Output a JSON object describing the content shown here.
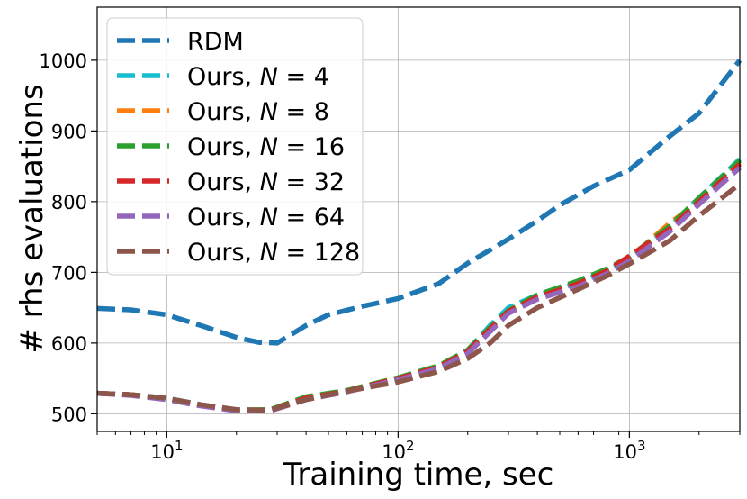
{
  "chart_data": {
    "type": "line",
    "title": "",
    "xlabel": "Training time, sec",
    "ylabel": "# rhs evaluations",
    "xscale": "log",
    "xlim": [
      5,
      3000
    ],
    "ylim": [
      475,
      1075
    ],
    "grid": true,
    "legend_position": "top-left",
    "x_ticks": [
      {
        "base": "10",
        "exp": "1",
        "value": 10
      },
      {
        "base": "10",
        "exp": "2",
        "value": 100
      },
      {
        "base": "10",
        "exp": "3",
        "value": 1000
      }
    ],
    "y_ticks": [
      {
        "label": "500",
        "value": 500
      },
      {
        "label": "600",
        "value": 600
      },
      {
        "label": "700",
        "value": 700
      },
      {
        "label": "800",
        "value": 800
      },
      {
        "label": "900",
        "value": 900
      },
      {
        "label": "1000",
        "value": 1000
      }
    ],
    "series": [
      {
        "name": "RDM",
        "prefix": "RDM",
        "n_label": "",
        "n_value": "",
        "color": "#1f77b4",
        "x": [
          5,
          7,
          10,
          14,
          20,
          25,
          30,
          40,
          50,
          70,
          100,
          150,
          200,
          300,
          400,
          500,
          700,
          1000,
          1500,
          2000,
          3000
        ],
        "y": [
          649,
          647,
          640,
          625,
          608,
          601,
          600,
          625,
          640,
          652,
          663,
          684,
          713,
          747,
          773,
          795,
          822,
          845,
          893,
          925,
          1000
        ]
      },
      {
        "name": "Ours, N = 4",
        "prefix": "Ours, ",
        "n_label": "N",
        "n_value": "4",
        "color": "#17becf",
        "x": [
          5,
          7,
          10,
          14,
          20,
          28,
          40,
          60,
          100,
          150,
          200,
          250,
          300,
          400,
          600,
          800,
          1000,
          1500,
          2000,
          3000
        ],
        "y": [
          529,
          527,
          522,
          513,
          505,
          505,
          522,
          532,
          550,
          566,
          590,
          625,
          650,
          668,
          685,
          702,
          720,
          765,
          805,
          860
        ]
      },
      {
        "name": "Ours, N = 8",
        "prefix": "Ours, ",
        "n_label": "N",
        "n_value": "8",
        "color": "#ff7f0e",
        "x": [
          5,
          7,
          10,
          14,
          20,
          28,
          40,
          60,
          100,
          150,
          200,
          250,
          300,
          400,
          600,
          800,
          1000,
          1500,
          2000,
          3000
        ],
        "y": [
          529,
          527,
          521,
          512,
          505,
          505,
          521,
          533,
          549,
          567,
          587,
          620,
          645,
          665,
          683,
          700,
          720,
          770,
          800,
          855
        ]
      },
      {
        "name": "Ours, N = 16",
        "prefix": "Ours, ",
        "n_label": "N",
        "n_value": "16",
        "color": "#2ca02c",
        "x": [
          5,
          7,
          10,
          14,
          20,
          28,
          40,
          60,
          100,
          150,
          200,
          250,
          300,
          400,
          600,
          800,
          1000,
          1500,
          2000,
          3000
        ],
        "y": [
          529,
          527,
          522,
          512,
          505,
          506,
          524,
          533,
          551,
          568,
          590,
          622,
          646,
          668,
          688,
          705,
          722,
          766,
          805,
          858
        ]
      },
      {
        "name": "Ours, N = 32",
        "prefix": "Ours, ",
        "n_label": "N",
        "n_value": "32",
        "color": "#d62728",
        "x": [
          5,
          7,
          10,
          14,
          20,
          28,
          40,
          60,
          100,
          150,
          200,
          250,
          300,
          400,
          600,
          800,
          1000,
          1500,
          2000,
          3000
        ],
        "y": [
          529,
          527,
          521,
          512,
          505,
          505,
          522,
          532,
          550,
          566,
          588,
          620,
          645,
          665,
          684,
          702,
          723,
          762,
          800,
          853
        ]
      },
      {
        "name": "Ours, N = 64",
        "prefix": "Ours, ",
        "n_label": "N",
        "n_value": "64",
        "color": "#9467bd",
        "x": [
          5,
          7,
          10,
          14,
          20,
          28,
          40,
          60,
          100,
          150,
          200,
          250,
          300,
          400,
          600,
          800,
          1000,
          1500,
          2000,
          3000
        ],
        "y": [
          529,
          526,
          520,
          511,
          504,
          504,
          520,
          531,
          548,
          564,
          585,
          616,
          642,
          662,
          680,
          698,
          716,
          758,
          796,
          848
        ]
      },
      {
        "name": "Ours, N = 128",
        "prefix": "Ours, ",
        "n_label": "N",
        "n_value": "128",
        "color": "#8c564b",
        "x": [
          5,
          7,
          10,
          14,
          20,
          28,
          40,
          60,
          100,
          150,
          200,
          250,
          300,
          400,
          600,
          800,
          1000,
          1500,
          2000,
          3000
        ],
        "y": [
          529,
          527,
          522,
          513,
          506,
          505,
          520,
          532,
          545,
          560,
          578,
          600,
          625,
          650,
          676,
          695,
          712,
          745,
          780,
          825
        ]
      }
    ]
  }
}
